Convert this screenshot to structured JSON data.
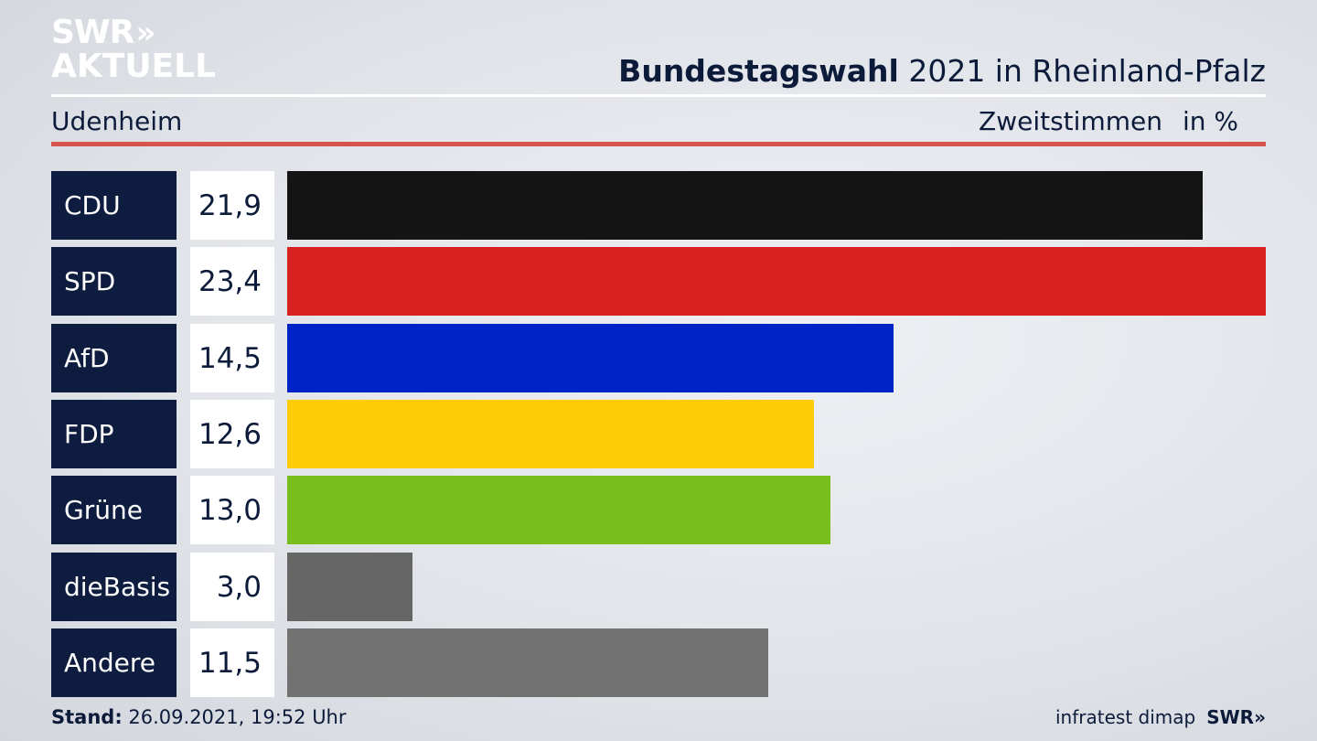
{
  "logo": {
    "line1": "SWR",
    "chevrons": "»",
    "line2": "AKTUELL"
  },
  "header": {
    "title_bold": "Bundestagswahl",
    "title_rest": "2021 in Rheinland-Pfalz"
  },
  "subheader": {
    "place": "Udenheim",
    "measure": "Zweitstimmen",
    "unit": "in %"
  },
  "chart_data": {
    "type": "bar",
    "orientation": "horizontal",
    "title": "Bundestagswahl 2021 in Rheinland-Pfalz",
    "subtitle": "Udenheim",
    "xlabel": "Zweitstimmen",
    "unit": "in %",
    "xlim": [
      0,
      23.4
    ],
    "grid": false,
    "categories": [
      "CDU",
      "SPD",
      "AfD",
      "FDP",
      "Grüne",
      "dieBasis",
      "Andere"
    ],
    "values": [
      21.9,
      23.4,
      14.5,
      12.6,
      13.0,
      3.0,
      11.5
    ],
    "labels": [
      "21,9",
      "23,4",
      "14,5",
      "12,6",
      "13,0",
      "3,0",
      "11,5"
    ],
    "colors": [
      "#141414",
      "#d82121",
      "#0023c8",
      "#ffcc0a",
      "#78bf1e",
      "#666666",
      "#727272"
    ]
  },
  "footer": {
    "stand_label": "Stand:",
    "stand_value": "26.09.2021, 19:52 Uhr",
    "source": "infratest dimap",
    "brand": "SWR",
    "brand_chevrons": "»"
  }
}
